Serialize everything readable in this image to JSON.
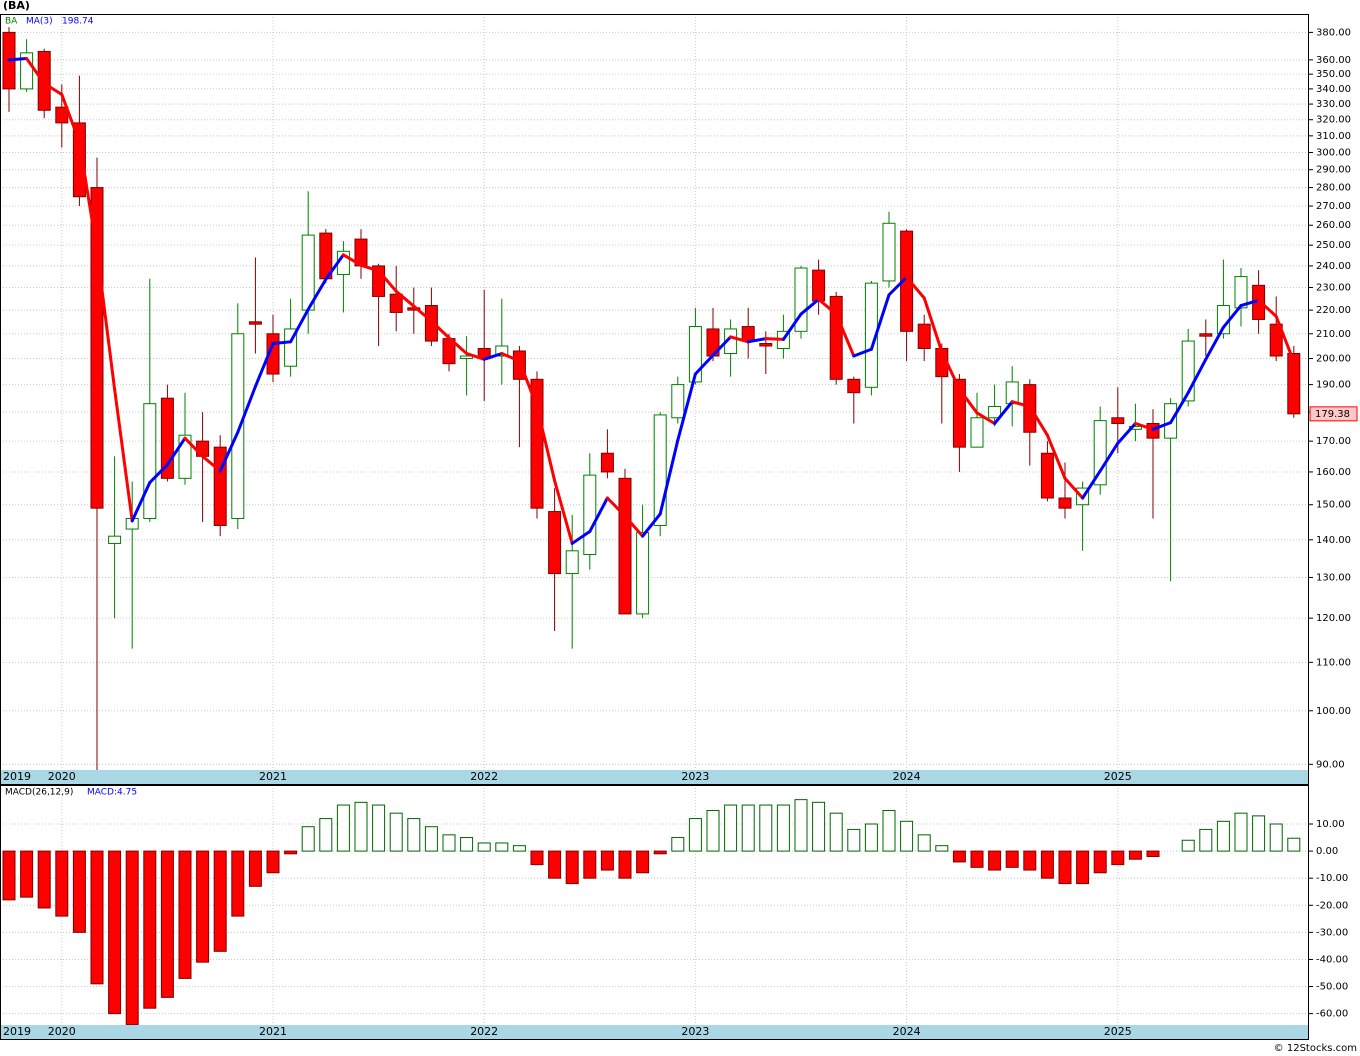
{
  "chart_data": [
    {
      "type": "candlestick",
      "title": "(BA)",
      "symbol": "BA",
      "categories": [
        "2019",
        null,
        null,
        "2020",
        null,
        null,
        null,
        null,
        null,
        null,
        null,
        null,
        null,
        null,
        null,
        "2021",
        null,
        null,
        null,
        null,
        null,
        null,
        null,
        null,
        null,
        null,
        null,
        "2022",
        null,
        null,
        null,
        null,
        null,
        null,
        null,
        null,
        null,
        null,
        null,
        "2023",
        null,
        null,
        null,
        null,
        null,
        null,
        null,
        null,
        null,
        null,
        null,
        "2024",
        null,
        null,
        null,
        null,
        null,
        null,
        null,
        null,
        null,
        null,
        null,
        "2025",
        null,
        null,
        null,
        null,
        null,
        null,
        null,
        null,
        null,
        null
      ],
      "open": [
        380,
        340,
        366,
        328,
        318,
        280,
        139,
        143,
        146,
        185,
        158,
        170,
        168,
        146,
        215,
        210,
        197,
        220,
        256,
        236,
        253,
        240,
        227,
        221,
        222,
        208,
        200,
        204,
        201,
        203,
        192,
        148,
        131,
        136,
        166,
        158,
        121,
        144,
        178,
        191,
        212,
        202,
        213,
        206,
        204,
        211,
        238,
        226,
        192,
        189,
        233,
        257,
        214,
        204,
        192,
        168,
        178,
        183,
        190,
        166,
        152,
        150,
        156,
        178,
        174,
        176,
        171,
        184,
        210,
        210,
        221,
        231,
        214,
        202
      ],
      "high": [
        384,
        375,
        368,
        343,
        349,
        297,
        165,
        157,
        234,
        190,
        187,
        180,
        172,
        223,
        244,
        218,
        225,
        278,
        258,
        252,
        258,
        241,
        240,
        230,
        230,
        210,
        209,
        229,
        225,
        205,
        195,
        155,
        147,
        166,
        174,
        161,
        150,
        180,
        193,
        221,
        221,
        216,
        221,
        211,
        218,
        240,
        243,
        228,
        193,
        233,
        267,
        258,
        218,
        206,
        194,
        187,
        190,
        197,
        192,
        170,
        163,
        157,
        182,
        189,
        183,
        181,
        185,
        212,
        216,
        243,
        239,
        238,
        226,
        205
      ],
      "low": [
        325,
        338,
        321,
        303,
        270,
        89,
        120,
        113,
        145,
        157,
        156,
        145,
        141,
        143,
        202,
        191,
        193,
        210,
        232,
        219,
        234,
        205,
        211,
        210,
        205,
        195,
        186,
        184,
        190,
        168,
        146,
        117,
        113,
        132,
        158,
        121,
        120,
        141,
        176,
        190,
        199,
        193,
        200,
        194,
        200,
        208,
        218,
        190,
        176,
        186,
        230,
        199,
        199,
        176,
        160,
        168,
        175,
        175,
        162,
        151,
        146,
        137,
        153,
        166,
        170,
        146,
        129,
        182,
        201,
        208,
        213,
        210,
        199,
        178
      ],
      "close": [
        340,
        365,
        326,
        318,
        275,
        149,
        141,
        146,
        183,
        158,
        172,
        165,
        144,
        210,
        214,
        194,
        212,
        255,
        234,
        247,
        240,
        226,
        219,
        220,
        207,
        198,
        201,
        200,
        205,
        192,
        149,
        131,
        137,
        159,
        160,
        121,
        142,
        179,
        190,
        213,
        201,
        212,
        207,
        205,
        211,
        239,
        224,
        192,
        187,
        232,
        261,
        211,
        204,
        193,
        168,
        178,
        182,
        191,
        173,
        152,
        149,
        155,
        177,
        176,
        175,
        171,
        183,
        207,
        209,
        222,
        235,
        216,
        201,
        179.38
      ],
      "up_color": "#008000",
      "down_color": "#ff0000",
      "series": [
        {
          "name": "MA(3)",
          "color": "#0000ff",
          "down_color": "#ff0000",
          "values": [
            360,
            361,
            343.7,
            336.3,
            306.3,
            247.3,
            188.3,
            145.3,
            156.7,
            162.3,
            171,
            165,
            160.3,
            173,
            189.3,
            206,
            206.7,
            220.3,
            233.7,
            245.3,
            240.3,
            237.7,
            228.3,
            221.7,
            215.3,
            208.3,
            202,
            199.7,
            202,
            199,
            182,
            157.3,
            139,
            142.3,
            152,
            146.7,
            141,
            147.3,
            170.3,
            194,
            201.3,
            208.7,
            206.7,
            208,
            207.7,
            218.3,
            224.7,
            218.3,
            201,
            203.7,
            226.7,
            234.7,
            225.3,
            202.7,
            188.3,
            179.7,
            176,
            183.7,
            182,
            172,
            158,
            152,
            160.3,
            169.3,
            176,
            174,
            176.3,
            187,
            199.7,
            212.7,
            222,
            224.3,
            217.3,
            198.74
          ]
        }
      ],
      "ylim": [
        89,
        394
      ],
      "log_scale": true,
      "grid": true,
      "yticks": [
        {
          "value": 90,
          "label": "90.00"
        },
        {
          "value": 100,
          "label": "100.00"
        },
        {
          "value": 110,
          "label": "110.00"
        },
        {
          "value": 120,
          "label": "120.00"
        },
        {
          "value": 130,
          "label": "130.00"
        },
        {
          "value": 140,
          "label": "140.00"
        },
        {
          "value": 150,
          "label": "150.00"
        },
        {
          "value": 160,
          "label": "160.00"
        },
        {
          "value": 170,
          "label": "170.00"
        },
        {
          "value": 180,
          "label": "180.00"
        },
        {
          "value": 190,
          "label": "190.00"
        },
        {
          "value": 200,
          "label": "200.00"
        },
        {
          "value": 210,
          "label": "210.00"
        },
        {
          "value": 220,
          "label": "220.00"
        },
        {
          "value": 230,
          "label": "230.00"
        },
        {
          "value": 240,
          "label": "240.00"
        },
        {
          "value": 250,
          "label": "250.00"
        },
        {
          "value": 260,
          "label": "260.00"
        },
        {
          "value": 270,
          "label": "270.00"
        },
        {
          "value": 280,
          "label": "280.00"
        },
        {
          "value": 290,
          "label": "290.00"
        },
        {
          "value": 300,
          "label": "300.00"
        },
        {
          "value": 310,
          "label": "310.00"
        },
        {
          "value": 320,
          "label": "320.00"
        },
        {
          "value": 330,
          "label": "330.00"
        },
        {
          "value": 340,
          "label": "340.00"
        },
        {
          "value": 350,
          "label": "350.00"
        },
        {
          "value": 360,
          "label": "360.00"
        },
        {
          "value": 380,
          "label": "380.00"
        }
      ]
    },
    {
      "type": "bar",
      "name": "MACD(26,12,9)",
      "value_label": "MACD:4.75",
      "values": [
        -18,
        -17,
        -21,
        -24,
        -30,
        -49,
        -60,
        -64,
        -58,
        -54,
        -47,
        -41,
        -37,
        -24,
        -13,
        -8,
        -1,
        9,
        12,
        17,
        18,
        17,
        14,
        12,
        9,
        6,
        5,
        3,
        3,
        2,
        -5,
        -10,
        -12,
        -10,
        -7,
        -10,
        -8,
        -1,
        5,
        12,
        15,
        17,
        17,
        17,
        17,
        19,
        18,
        14,
        8,
        10,
        15,
        11,
        6,
        2,
        -4,
        -6,
        -7,
        -6,
        -7,
        -10,
        -12,
        -12,
        -8,
        -5,
        -3,
        -2,
        0,
        4,
        8,
        11,
        14,
        13,
        10,
        4.75
      ],
      "up_color": "#006400",
      "down_color": "#ff0000",
      "ylim": [
        -64.2,
        24.4
      ],
      "grid": true,
      "yticks": [
        {
          "value": -60,
          "label": "-60.00"
        },
        {
          "value": -50,
          "label": "-50.00"
        },
        {
          "value": -40,
          "label": "-40.00"
        },
        {
          "value": -30,
          "label": "-30.00"
        },
        {
          "value": -20,
          "label": "-20.00"
        },
        {
          "value": -10,
          "label": "-10.00"
        },
        {
          "value": 0,
          "label": "0.00"
        },
        {
          "value": 10,
          "label": "10.00"
        }
      ]
    }
  ],
  "footer": "© 12Stocks.com"
}
